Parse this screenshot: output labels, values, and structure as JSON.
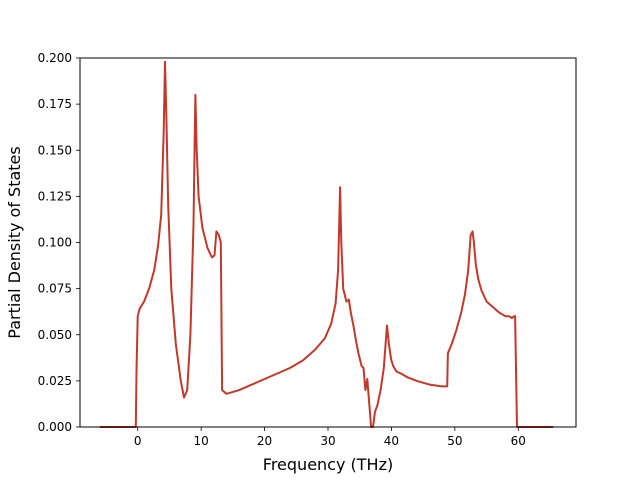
{
  "chart_data": {
    "type": "line",
    "xlabel": "Frequency (THz)",
    "ylabel": "Partial Density of States",
    "xlim": [
      -9.1,
      69.1
    ],
    "ylim": [
      0.0,
      0.2
    ],
    "x_ticks": [
      "0",
      "10",
      "20",
      "30",
      "40",
      "50",
      "60"
    ],
    "y_ticks": [
      "0.000",
      "0.025",
      "0.050",
      "0.075",
      "0.100",
      "0.125",
      "0.150",
      "0.175",
      "0.200"
    ],
    "grid": false,
    "series": [
      {
        "color": "#c0392b",
        "x": [
          -6.0,
          -0.3,
          -0.2,
          0.0,
          0.3,
          1.0,
          1.8,
          2.6,
          3.2,
          3.7,
          4.1,
          4.3,
          4.5,
          4.8,
          5.3,
          6.0,
          6.8,
          7.3,
          7.8,
          8.3,
          8.8,
          9.0,
          9.1,
          9.3,
          9.6,
          10.2,
          11.0,
          11.7,
          12.1,
          12.4,
          12.8,
          13.1,
          13.3,
          14.0,
          16.0,
          18.0,
          20.0,
          22.0,
          24.0,
          26.0,
          28.0,
          29.5,
          30.5,
          31.2,
          31.6,
          31.9,
          32.1,
          32.4,
          32.9,
          33.3,
          33.6,
          34.0,
          34.4,
          34.8,
          35.3,
          35.6,
          35.9,
          36.2,
          36.5,
          36.8,
          37.1,
          37.4,
          37.8,
          38.3,
          38.8,
          39.3,
          39.6,
          39.8,
          40.0,
          40.3,
          40.8,
          41.5,
          42.5,
          44.0,
          46.0,
          48.0,
          48.8,
          48.9,
          49.5,
          50.2,
          51.0,
          51.6,
          52.1,
          52.5,
          52.8,
          53.0,
          53.3,
          53.7,
          54.2,
          55.0,
          56.0,
          57.0,
          58.0,
          58.6,
          59.0,
          59.3,
          59.5,
          59.8,
          65.5
        ],
        "y": [
          0.0,
          0.0,
          0.03,
          0.06,
          0.064,
          0.068,
          0.075,
          0.085,
          0.098,
          0.115,
          0.16,
          0.198,
          0.17,
          0.12,
          0.075,
          0.045,
          0.025,
          0.016,
          0.02,
          0.05,
          0.11,
          0.16,
          0.18,
          0.15,
          0.125,
          0.108,
          0.097,
          0.092,
          0.093,
          0.106,
          0.104,
          0.1,
          0.02,
          0.018,
          0.02,
          0.023,
          0.026,
          0.029,
          0.032,
          0.036,
          0.042,
          0.048,
          0.056,
          0.067,
          0.085,
          0.13,
          0.1,
          0.075,
          0.068,
          0.069,
          0.062,
          0.055,
          0.047,
          0.04,
          0.033,
          0.032,
          0.02,
          0.026,
          0.013,
          0.0,
          0.0,
          0.008,
          0.012,
          0.02,
          0.032,
          0.055,
          0.045,
          0.04,
          0.036,
          0.033,
          0.03,
          0.029,
          0.027,
          0.025,
          0.023,
          0.022,
          0.022,
          0.04,
          0.045,
          0.052,
          0.062,
          0.072,
          0.085,
          0.104,
          0.106,
          0.1,
          0.088,
          0.08,
          0.074,
          0.068,
          0.065,
          0.062,
          0.06,
          0.06,
          0.059,
          0.06,
          0.06,
          0.0,
          0.0
        ]
      }
    ]
  }
}
